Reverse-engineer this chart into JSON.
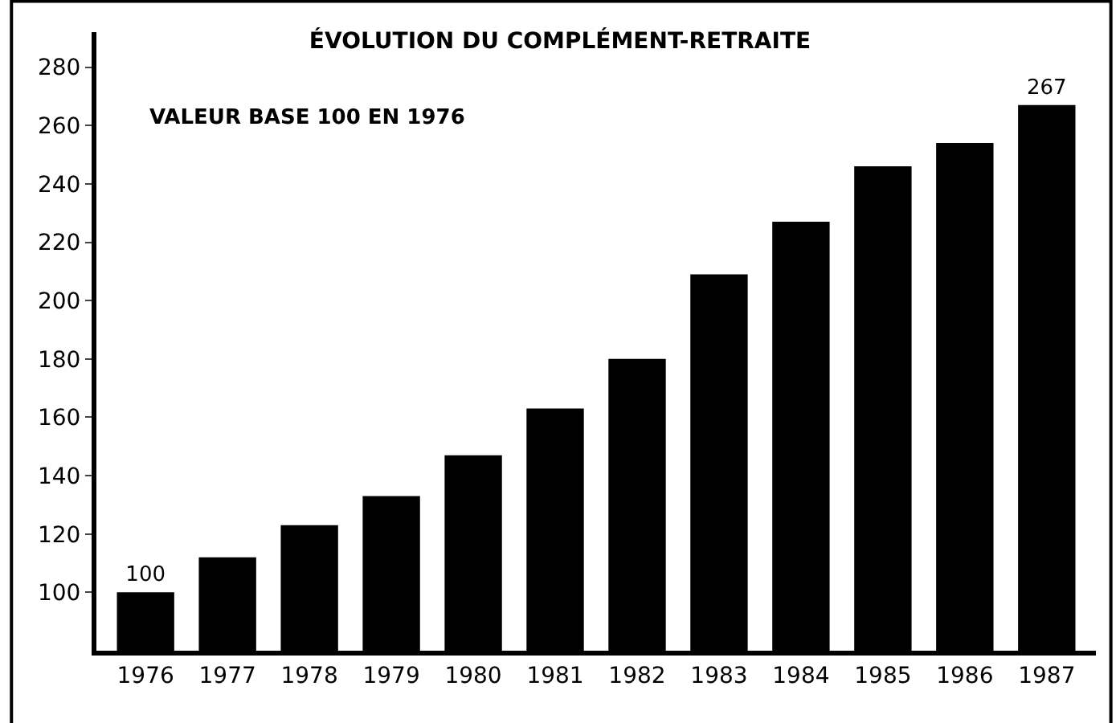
{
  "chart_data": {
    "type": "bar",
    "title": "ÉVOLUTION DU COMPLÉMENT-RETRAITE",
    "categories": [
      "1976",
      "1977",
      "1978",
      "1979",
      "1980",
      "1981",
      "1982",
      "1983",
      "1984",
      "1985",
      "1986",
      "1987"
    ],
    "values": [
      100,
      112,
      123,
      133,
      147,
      163,
      180,
      209,
      227,
      246,
      254,
      267
    ],
    "value_labels": [
      "100",
      null,
      null,
      null,
      null,
      null,
      null,
      null,
      null,
      null,
      null,
      "267"
    ],
    "color": "#000000",
    "ylim": [
      80,
      292
    ],
    "yticks": [
      100,
      120,
      140,
      160,
      180,
      200,
      220,
      240,
      260,
      280
    ],
    "annotations": [
      "VALEUR BASE 100 EN 1976"
    ]
  }
}
